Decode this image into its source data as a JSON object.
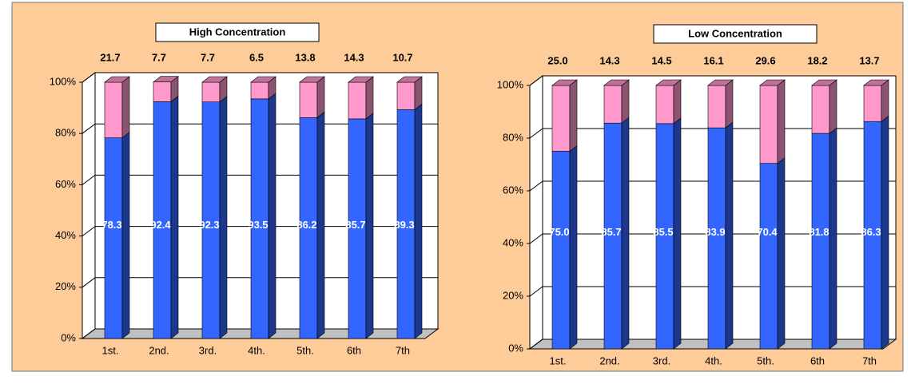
{
  "chart_data": [
    {
      "type": "bar3d-stacked",
      "title": "High Concentration",
      "categories": [
        "1st.",
        "2nd.",
        "3rd.",
        "4th.",
        "5th.",
        "6th",
        "7th"
      ],
      "series": [
        {
          "color": "#3366ff",
          "values": [
            78.3,
            92.4,
            92.3,
            93.5,
            86.2,
            85.7,
            89.3
          ],
          "value_labels": [
            "78.3",
            "92.4",
            "92.3",
            "93.5",
            "86.2",
            "85.7",
            "89.3"
          ]
        },
        {
          "color": "#ff99cc",
          "values": [
            21.7,
            7.7,
            7.7,
            6.5,
            13.8,
            14.3,
            10.7
          ],
          "value_labels": [
            "21.7",
            "7.7",
            "7.7",
            "6.5",
            "13.8",
            "14.3",
            "10.7"
          ]
        }
      ],
      "ylim": [
        0,
        100
      ],
      "yticks": [
        {
          "value": 0,
          "label": "0%"
        },
        {
          "value": 20,
          "label": "20%"
        },
        {
          "value": 40,
          "label": "40%"
        },
        {
          "value": 60,
          "label": "60%"
        },
        {
          "value": 80,
          "label": "80%"
        },
        {
          "value": 100,
          "label": "100%"
        }
      ],
      "grid": true
    },
    {
      "type": "bar3d-stacked",
      "title": "Low Concentration",
      "categories": [
        "1st.",
        "2nd.",
        "3rd.",
        "4th.",
        "5th.",
        "6th",
        "7th"
      ],
      "series": [
        {
          "color": "#3366ff",
          "values": [
            75.0,
            85.7,
            85.5,
            83.9,
            70.4,
            81.8,
            86.3
          ],
          "value_labels": [
            "75.0",
            "85.7",
            "85.5",
            "83.9",
            "70.4",
            "81.8",
            "86.3"
          ]
        },
        {
          "color": "#ff99cc",
          "values": [
            25.0,
            14.3,
            14.5,
            16.1,
            29.6,
            18.2,
            13.7
          ],
          "value_labels": [
            "25.0",
            "14.3",
            "14.5",
            "16.1",
            "29.6",
            "18.2",
            "13.7"
          ]
        }
      ],
      "ylim": [
        0,
        100
      ],
      "yticks": [
        {
          "value": 0,
          "label": "0%"
        },
        {
          "value": 20,
          "label": "20%"
        },
        {
          "value": 40,
          "label": "40%"
        },
        {
          "value": 60,
          "label": "60%"
        },
        {
          "value": 80,
          "label": "80%"
        },
        {
          "value": 100,
          "label": "100%"
        }
      ],
      "grid": true
    }
  ]
}
